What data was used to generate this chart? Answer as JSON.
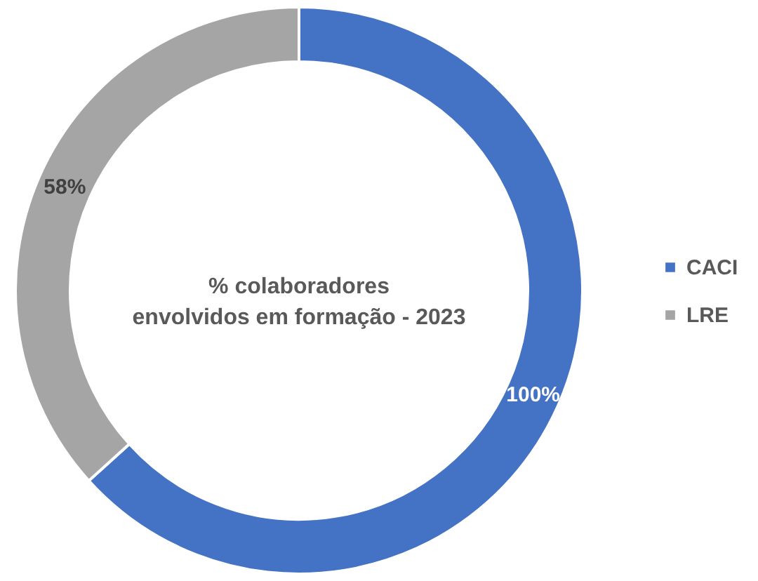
{
  "chart_data": {
    "type": "donut",
    "title": "% colaboradores envolvidos em formação - 2023",
    "categories": [
      "CACI",
      "LRE"
    ],
    "values": [
      100,
      58
    ],
    "colors": [
      "#4472c4",
      "#a5a5a5"
    ],
    "value_labels": [
      "100%",
      "58%"
    ],
    "legend": "right"
  }
}
